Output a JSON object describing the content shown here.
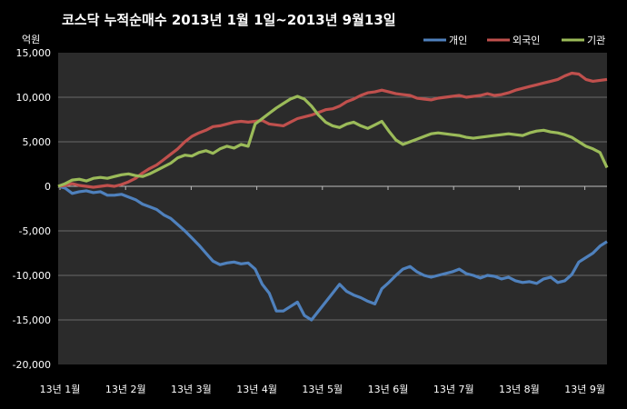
{
  "chart_data": {
    "type": "line",
    "title": "코스닥  누적순매수 2013년 1월 1일~2013년 9월13일",
    "unit_label": "억원",
    "ylim": [
      -20000,
      15000
    ],
    "yticks": [
      15000,
      10000,
      5000,
      0,
      -5000,
      -10000,
      -15000,
      -20000
    ],
    "ytick_labels": [
      "15,000",
      "10,000",
      "5,000",
      "0",
      "-5,000",
      "-10,000",
      "-15,000",
      "-20,000"
    ],
    "x_tick_labels": [
      "13년 1월",
      "13년 2월",
      "13년 3월",
      "13년 4월",
      "13년 5월",
      "13년 6월",
      "13년 7월",
      "13년 8월",
      "13년 9월"
    ],
    "grid": "horizontal",
    "legend_position": "top-right",
    "colors": {
      "background": "#000000",
      "plot_background": "#2b2b2b",
      "grid": "#6a6a6a"
    },
    "series": [
      {
        "name": "개인",
        "color": "#4f81bd",
        "values": [
          0,
          -200,
          -800,
          -600,
          -500,
          -700,
          -600,
          -1000,
          -1000,
          -900,
          -1200,
          -1500,
          -2000,
          -2300,
          -2600,
          -3200,
          -3600,
          -4300,
          -5000,
          -5800,
          -6600,
          -7500,
          -8400,
          -8800,
          -8600,
          -8500,
          -8700,
          -8600,
          -9300,
          -11000,
          -12000,
          -14000,
          -14000,
          -13500,
          -13000,
          -14500,
          -15000,
          -14000,
          -13000,
          -12000,
          -11000,
          -11800,
          -12200,
          -12500,
          -12900,
          -13200,
          -11500,
          -10800,
          -10000,
          -9300,
          -9000,
          -9600,
          -10000,
          -10200,
          -10000,
          -9800,
          -9600,
          -9300,
          -9800,
          -10000,
          -10300,
          -10000,
          -10100,
          -10400,
          -10200,
          -10600,
          -10800,
          -10700,
          -10900,
          -10400,
          -10200,
          -10800,
          -10600,
          -9900,
          -8500,
          -8000,
          -7500,
          -6700,
          -6200
        ]
      },
      {
        "name": "외국인",
        "color": "#c0504d",
        "values": [
          0,
          100,
          300,
          100,
          0,
          -100,
          0,
          100,
          0,
          200,
          500,
          900,
          1500,
          2000,
          2400,
          3000,
          3600,
          4200,
          5000,
          5600,
          6000,
          6300,
          6700,
          6800,
          7000,
          7200,
          7300,
          7200,
          7300,
          7400,
          7000,
          6900,
          6800,
          7200,
          7600,
          7800,
          8000,
          8300,
          8600,
          8700,
          9000,
          9500,
          9800,
          10200,
          10500,
          10600,
          10800,
          10600,
          10400,
          10300,
          10200,
          9900,
          9800,
          9700,
          9900,
          10000,
          10100,
          10200,
          10000,
          10100,
          10200,
          10400,
          10200,
          10300,
          10500,
          10800,
          11000,
          11200,
          11400,
          11600,
          11800,
          12000,
          12400,
          12700,
          12600,
          12000,
          11800,
          11900,
          12000
        ]
      },
      {
        "name": "기관",
        "color": "#9bbb59",
        "values": [
          0,
          300,
          700,
          800,
          600,
          900,
          1000,
          900,
          1100,
          1300,
          1400,
          1200,
          1100,
          1400,
          1800,
          2200,
          2600,
          3200,
          3500,
          3400,
          3800,
          4000,
          3700,
          4200,
          4500,
          4300,
          4700,
          4500,
          7000,
          7600,
          8200,
          8800,
          9300,
          9800,
          10100,
          9800,
          9000,
          8000,
          7200,
          6800,
          6600,
          7000,
          7200,
          6800,
          6500,
          6900,
          7300,
          6200,
          5200,
          4700,
          5000,
          5300,
          5600,
          5900,
          6000,
          5900,
          5800,
          5700,
          5500,
          5400,
          5500,
          5600,
          5700,
          5800,
          5900,
          5800,
          5700,
          6000,
          6200,
          6300,
          6100,
          6000,
          5800,
          5500,
          5000,
          4500,
          4200,
          3800,
          2100
        ]
      }
    ]
  }
}
